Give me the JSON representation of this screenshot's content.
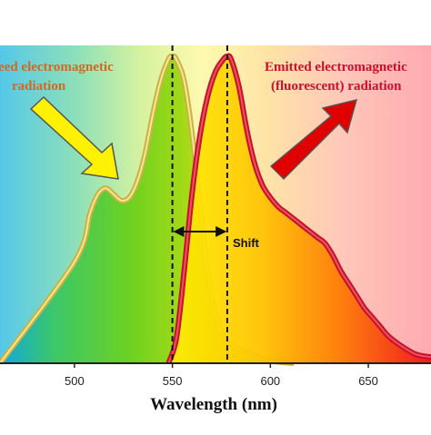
{
  "chart_data": {
    "type": "area",
    "xlabel": "Wavelength (nm)",
    "ylabel": "",
    "xlim": [
      462,
      682
    ],
    "ylim": [
      0,
      1
    ],
    "x_ticks": [
      500,
      550,
      600,
      650
    ],
    "x_tick_labels": [
      "500",
      "550",
      "600",
      "650"
    ],
    "grid": false,
    "background": "visible spectrum gradient",
    "series": [
      {
        "key": "absorbed",
        "fill": "#4CC71F",
        "stroke": "#C9B24A",
        "x": [
          462,
          500,
          508,
          512,
          516,
          520,
          524,
          528,
          532,
          536,
          540,
          544,
          548,
          550,
          552,
          556,
          560,
          564,
          568,
          572,
          576,
          580,
          584,
          588,
          592,
          596,
          600,
          606,
          612
        ],
        "y": [
          0,
          0.33,
          0.49,
          0.55,
          0.57,
          0.55,
          0.53,
          0.54,
          0.59,
          0.68,
          0.81,
          0.92,
          0.99,
          1.0,
          0.99,
          0.92,
          0.75,
          0.52,
          0.3,
          0.16,
          0.09,
          0.06,
          0.045,
          0.035,
          0.025,
          0.015,
          0.008,
          0.003,
          0
        ]
      },
      {
        "key": "emitted",
        "fill": "#FFC400",
        "stroke": "#C8102E",
        "x": [
          548,
          552,
          556,
          560,
          564,
          568,
          572,
          576,
          578,
          580,
          584,
          588,
          592,
          596,
          600,
          604,
          608,
          612,
          616,
          620,
          624,
          628,
          632,
          636,
          640,
          644,
          648,
          652,
          656,
          660,
          666,
          674,
          682
        ],
        "y": [
          0,
          0.08,
          0.3,
          0.55,
          0.74,
          0.87,
          0.95,
          0.99,
          1.0,
          0.99,
          0.9,
          0.76,
          0.65,
          0.58,
          0.54,
          0.51,
          0.49,
          0.47,
          0.45,
          0.43,
          0.41,
          0.39,
          0.35,
          0.3,
          0.26,
          0.22,
          0.18,
          0.15,
          0.12,
          0.09,
          0.06,
          0.03,
          0.02
        ]
      }
    ],
    "annotations": {
      "absorbed_text_line1": "eed electromagnetic",
      "absorbed_text_line2": "radiation",
      "emitted_text_line1": "Emitted electromagnetic",
      "emitted_text_line2": "(fluorescent) radiation",
      "shift_label": "Shift",
      "absorbed_peak_nm": 550,
      "emitted_peak_nm": 578
    },
    "colors": {
      "absorbed_text": "#D2691E",
      "emitted_text": "#C8102E",
      "absorbed_arrow": "#FFF200",
      "emitted_arrow": "#E00000"
    }
  }
}
